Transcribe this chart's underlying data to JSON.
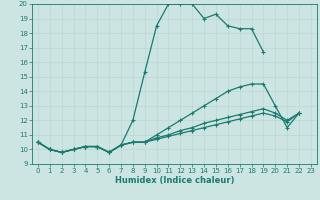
{
  "xlabel": "Humidex (Indice chaleur)",
  "xlim": [
    -0.5,
    23.5
  ],
  "ylim": [
    9,
    20
  ],
  "xticks": [
    0,
    1,
    2,
    3,
    4,
    5,
    6,
    7,
    8,
    9,
    10,
    11,
    12,
    13,
    14,
    15,
    16,
    17,
    18,
    19,
    20,
    21,
    22,
    23
  ],
  "yticks": [
    9,
    10,
    11,
    12,
    13,
    14,
    15,
    16,
    17,
    18,
    19,
    20
  ],
  "bg_color": "#cde5e2",
  "line_color": "#1a7a6e",
  "grid_color": "#b8d8d5",
  "line1_x": [
    0,
    1,
    2,
    3,
    4,
    5,
    6,
    7,
    8,
    9,
    10,
    11,
    12,
    13,
    14,
    15,
    16,
    17,
    18,
    19
  ],
  "line1_y": [
    10.5,
    10.0,
    9.8,
    10.0,
    10.2,
    10.2,
    9.8,
    10.3,
    12.0,
    15.3,
    18.5,
    20.0,
    20.0,
    20.0,
    19.0,
    19.3,
    18.5,
    18.3,
    18.3,
    16.7
  ],
  "line2_x": [
    0,
    1,
    2,
    3,
    4,
    5,
    6,
    7,
    8,
    9,
    10,
    11,
    12,
    13,
    14,
    15,
    16,
    17,
    18,
    19,
    20,
    21,
    22
  ],
  "line2_y": [
    10.5,
    10.0,
    9.8,
    10.0,
    10.2,
    10.2,
    9.8,
    10.3,
    10.5,
    10.5,
    11.0,
    11.5,
    12.0,
    12.5,
    13.0,
    13.5,
    14.0,
    14.3,
    14.5,
    14.5,
    13.0,
    11.5,
    12.5
  ],
  "line3_x": [
    0,
    1,
    2,
    3,
    4,
    5,
    6,
    7,
    8,
    9,
    10,
    11,
    12,
    13,
    14,
    15,
    16,
    17,
    18,
    19,
    20,
    21,
    22
  ],
  "line3_y": [
    10.5,
    10.0,
    9.8,
    10.0,
    10.2,
    10.2,
    9.8,
    10.3,
    10.5,
    10.5,
    10.8,
    11.0,
    11.3,
    11.5,
    11.8,
    12.0,
    12.2,
    12.4,
    12.6,
    12.8,
    12.5,
    12.0,
    12.5
  ],
  "line4_x": [
    0,
    1,
    2,
    3,
    4,
    5,
    6,
    7,
    8,
    9,
    10,
    11,
    12,
    13,
    14,
    15,
    16,
    17,
    18,
    19,
    20,
    21,
    22
  ],
  "line4_y": [
    10.5,
    10.0,
    9.8,
    10.0,
    10.2,
    10.2,
    9.8,
    10.3,
    10.5,
    10.5,
    10.7,
    10.9,
    11.1,
    11.3,
    11.5,
    11.7,
    11.9,
    12.1,
    12.3,
    12.5,
    12.3,
    11.9,
    12.5
  ]
}
